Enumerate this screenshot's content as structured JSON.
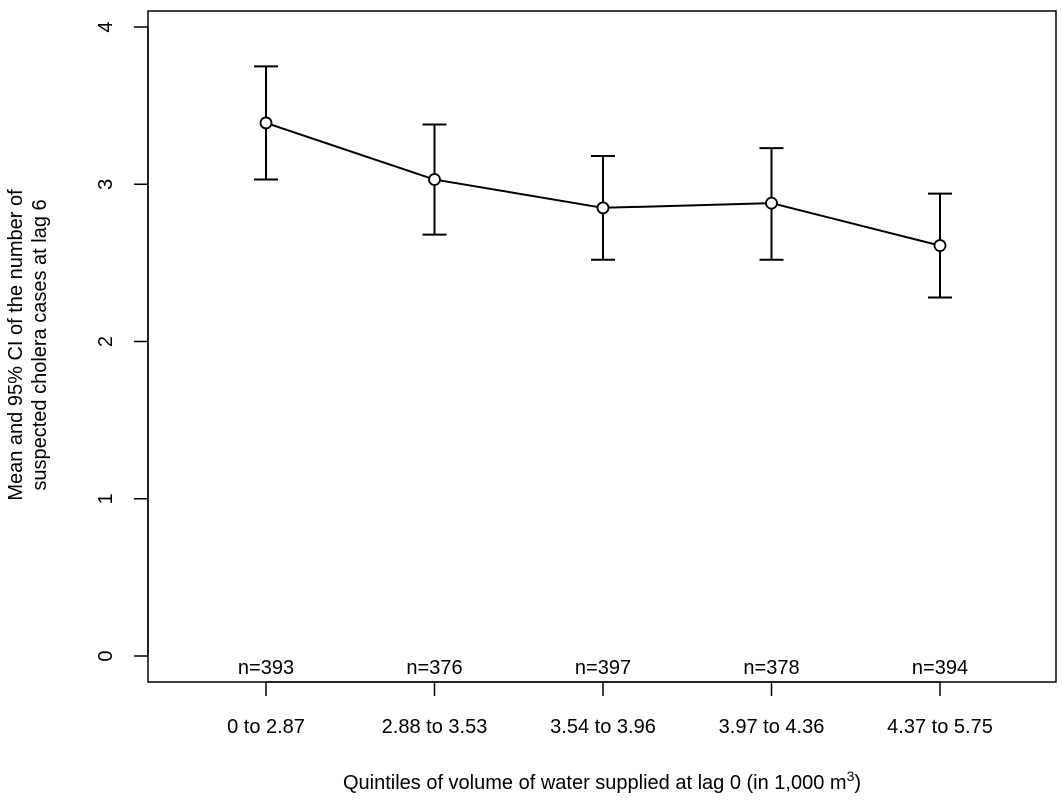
{
  "chart_data": {
    "type": "line",
    "categories": [
      "0 to 2.87",
      "2.88 to 3.53",
      "3.54 to 3.96",
      "3.97 to 4.36",
      "4.37 to 5.75"
    ],
    "series": [
      {
        "values": [
          3.39,
          3.03,
          2.85,
          2.88,
          2.61
        ],
        "ci_lower": [
          3.03,
          2.68,
          2.52,
          2.52,
          2.28
        ],
        "ci_upper": [
          3.75,
          3.38,
          3.18,
          3.23,
          2.94
        ]
      }
    ],
    "n_labels": [
      "n=393",
      "n=376",
      "n=397",
      "n=378",
      "n=394"
    ],
    "xlabel": "Quintiles of volume of water supplied at lag 0 (in 1,000 m",
    "xlabel_superscript": "3",
    "xlabel_suffix": ")",
    "ylabel_line1": "Mean and 95% CI of the number of",
    "ylabel_line2": "suspected cholera cases at lag 6",
    "ylim": [
      0,
      4
    ],
    "yticks": [
      "0",
      "1",
      "2",
      "3",
      "4"
    ],
    "grid": false,
    "marker": "open-circle",
    "colors": {
      "line": "#000000"
    }
  }
}
